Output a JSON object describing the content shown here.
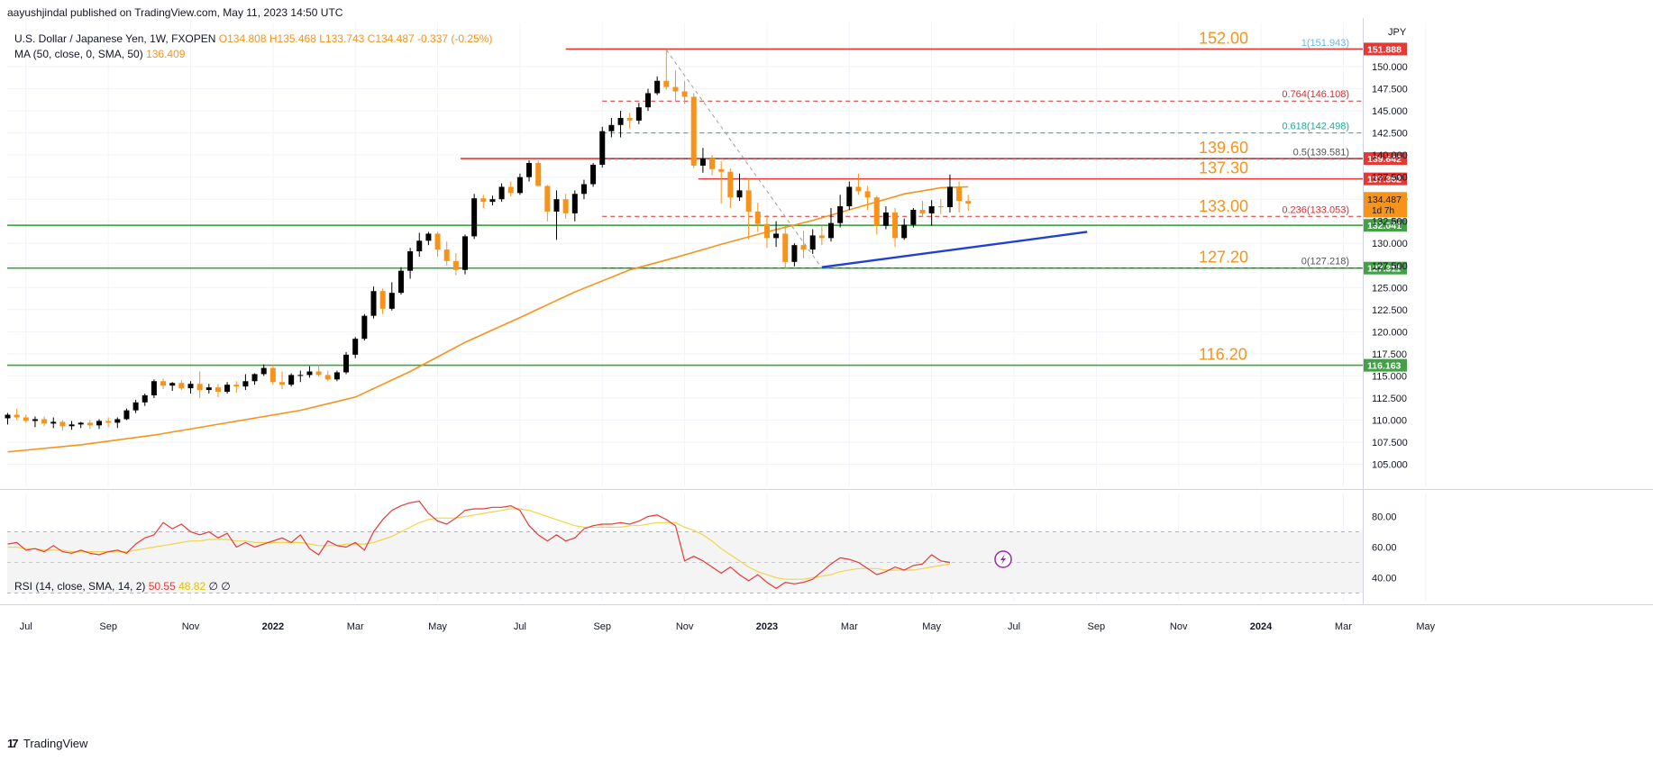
{
  "header": {
    "text": "aayushjindal published on TradingView.com, May 11, 2023 14:50 UTC"
  },
  "legend": {
    "symbol": "U.S. Dollar / Japanese Yen, 1W, FXOPEN",
    "o": "O134.808",
    "h": "H135.468",
    "l": "L133.743",
    "c": "C134.487",
    "chg": "-0.337 (-0.25%)"
  },
  "ma_legend": {
    "label": "MA (50, close, 0, SMA, 50)",
    "value": "136.409"
  },
  "rsi_legend": {
    "label": "RSI (14, close, SMA, 14, 2)",
    "rsi": "50.55",
    "sma": "48.82",
    "extra": "∅ ∅"
  },
  "brand": {
    "logo": "17",
    "name": "TradingView"
  },
  "colors": {
    "up": "#000000",
    "down": "#f7931a",
    "ma": "#f7931a",
    "rsi": "#e53935",
    "rsi_sma": "#f2d44a",
    "resistance": "#e53935",
    "support": "#43a047",
    "trend": "#1f3fd8",
    "fib_label": "#f7931a"
  },
  "chart_data": {
    "type": "candlestick",
    "title": "U.S. Dollar / Japanese Yen, 1W, FXOPEN",
    "currency": "JPY",
    "ylim": [
      102.5,
      155
    ],
    "yticks": [
      105,
      107.5,
      110,
      112.5,
      115,
      117.5,
      120,
      122.5,
      125,
      127.5,
      130,
      132.5,
      135,
      137.5,
      140,
      142.5,
      145,
      147.5,
      150
    ],
    "ytick_labels": [
      "105.000",
      "107.500",
      "110.000",
      "112.500",
      "115.000",
      "117.500",
      "120.000",
      "122.500",
      "125.000",
      "127.500",
      "130.000",
      "132.500",
      "135.000",
      "137.500",
      "140.000",
      "142.500",
      "145.000",
      "147.500",
      "150.000"
    ],
    "xticks": [
      "Jul",
      "Sep",
      "Nov",
      "2022",
      "Mar",
      "May",
      "Jul",
      "Sep",
      "Nov",
      "2023",
      "Mar",
      "May",
      "Jul",
      "Sep",
      "Nov",
      "2024",
      "Mar",
      "May"
    ],
    "xtick_weeks": [
      2,
      11,
      20,
      29,
      38,
      47,
      56,
      65,
      74,
      83,
      92,
      101,
      110,
      119,
      128,
      137,
      146,
      155
    ],
    "candles": [
      [
        110.2,
        110.8,
        109.5,
        110.6
      ],
      [
        110.6,
        111.3,
        110.0,
        110.3
      ],
      [
        110.3,
        110.6,
        109.7,
        109.9
      ],
      [
        109.9,
        110.4,
        109.2,
        110.1
      ],
      [
        110.1,
        110.4,
        109.3,
        109.6
      ],
      [
        109.6,
        110.3,
        109.1,
        109.8
      ],
      [
        109.8,
        110.0,
        108.8,
        109.3
      ],
      [
        109.3,
        109.9,
        108.9,
        109.5
      ],
      [
        109.5,
        109.8,
        109.1,
        109.7
      ],
      [
        109.7,
        110.0,
        109.0,
        109.4
      ],
      [
        109.4,
        110.1,
        109.0,
        109.9
      ],
      [
        109.9,
        110.3,
        109.2,
        109.7
      ],
      [
        109.7,
        110.3,
        109.1,
        110.1
      ],
      [
        110.1,
        111.3,
        110.0,
        111.1
      ],
      [
        111.1,
        112.3,
        110.8,
        112.0
      ],
      [
        112.0,
        113.0,
        111.6,
        112.8
      ],
      [
        112.8,
        114.6,
        112.5,
        114.4
      ],
      [
        114.4,
        114.7,
        113.5,
        113.9
      ],
      [
        113.9,
        114.3,
        113.3,
        114.2
      ],
      [
        114.2,
        114.5,
        113.4,
        113.6
      ],
      [
        113.6,
        114.4,
        113.0,
        114.1
      ],
      [
        114.1,
        115.5,
        112.5,
        113.4
      ],
      [
        113.4,
        114.1,
        113.0,
        113.7
      ],
      [
        113.7,
        114.1,
        112.6,
        113.2
      ],
      [
        113.2,
        114.3,
        113.0,
        114.0
      ],
      [
        114.0,
        114.4,
        113.1,
        113.8
      ],
      [
        113.8,
        115.2,
        113.4,
        114.4
      ],
      [
        114.4,
        115.3,
        114.0,
        115.2
      ],
      [
        115.2,
        116.3,
        115.0,
        115.9
      ],
      [
        115.9,
        116.3,
        114.0,
        114.3
      ],
      [
        114.3,
        115.5,
        113.5,
        114.0
      ],
      [
        114.0,
        115.3,
        113.8,
        115.1
      ],
      [
        115.1,
        115.6,
        114.3,
        115.1
      ],
      [
        115.1,
        116.1,
        114.8,
        115.5
      ],
      [
        115.5,
        116.3,
        114.9,
        115.1
      ],
      [
        115.1,
        115.6,
        114.4,
        114.6
      ],
      [
        114.6,
        115.6,
        114.4,
        115.4
      ],
      [
        115.4,
        117.7,
        115.2,
        117.4
      ],
      [
        117.4,
        119.4,
        117.0,
        119.2
      ],
      [
        119.2,
        122.0,
        119.0,
        121.8
      ],
      [
        121.8,
        125.1,
        121.5,
        124.6
      ],
      [
        124.6,
        124.9,
        122.0,
        122.6
      ],
      [
        122.6,
        125.6,
        122.4,
        124.4
      ],
      [
        124.4,
        127.3,
        124.2,
        126.9
      ],
      [
        126.9,
        129.5,
        126.0,
        129.1
      ],
      [
        129.1,
        131.2,
        128.5,
        130.3
      ],
      [
        130.3,
        131.3,
        129.8,
        131.1
      ],
      [
        131.1,
        131.3,
        128.5,
        129.3
      ],
      [
        129.3,
        130.2,
        127.5,
        128.0
      ],
      [
        128.0,
        128.9,
        126.4,
        127.0
      ],
      [
        127.0,
        131.0,
        126.5,
        130.8
      ],
      [
        130.8,
        135.6,
        130.5,
        135.1
      ],
      [
        135.1,
        135.5,
        134.0,
        134.7
      ],
      [
        134.7,
        135.4,
        134.3,
        135.0
      ],
      [
        135.0,
        136.8,
        134.7,
        136.4
      ],
      [
        136.4,
        137.0,
        135.3,
        135.7
      ],
      [
        135.7,
        137.9,
        135.5,
        137.5
      ],
      [
        137.5,
        139.4,
        137.0,
        139.1
      ],
      [
        139.1,
        139.4,
        136.5,
        136.5
      ],
      [
        136.5,
        136.6,
        132.5,
        133.6
      ],
      [
        133.6,
        136.0,
        130.4,
        135.0
      ],
      [
        135.0,
        135.6,
        132.8,
        133.4
      ],
      [
        133.4,
        136.0,
        132.5,
        135.6
      ],
      [
        135.6,
        137.2,
        135.0,
        136.7
      ],
      [
        136.7,
        139.1,
        136.4,
        138.9
      ],
      [
        138.9,
        143.2,
        138.6,
        142.7
      ],
      [
        142.7,
        144.2,
        142.0,
        143.4
      ],
      [
        143.4,
        145.0,
        142.0,
        144.2
      ],
      [
        144.2,
        144.8,
        143.0,
        143.9
      ],
      [
        143.9,
        145.9,
        143.5,
        145.4
      ],
      [
        145.4,
        147.5,
        145.0,
        147.0
      ],
      [
        147.0,
        148.9,
        146.8,
        148.4
      ],
      [
        148.4,
        151.9,
        147.4,
        147.7
      ],
      [
        147.7,
        149.6,
        146.0,
        147.2
      ],
      [
        147.2,
        148.4,
        145.8,
        146.6
      ],
      [
        146.6,
        147.0,
        138.5,
        138.8
      ],
      [
        138.8,
        140.8,
        138.0,
        139.6
      ],
      [
        139.6,
        140.0,
        137.7,
        138.4
      ],
      [
        138.4,
        139.3,
        134.5,
        138.1
      ],
      [
        138.1,
        138.5,
        134.0,
        135.2
      ],
      [
        135.2,
        137.9,
        134.8,
        136.0
      ],
      [
        136.0,
        137.4,
        130.5,
        133.6
      ],
      [
        133.6,
        134.6,
        131.3,
        132.2
      ],
      [
        132.2,
        133.2,
        129.5,
        130.6
      ],
      [
        130.6,
        132.5,
        129.6,
        131.1
      ],
      [
        131.1,
        132.0,
        127.2,
        127.9
      ],
      [
        127.9,
        130.0,
        127.4,
        129.8
      ],
      [
        129.8,
        131.4,
        128.3,
        129.3
      ],
      [
        129.3,
        131.6,
        128.8,
        130.9
      ],
      [
        130.9,
        132.0,
        129.8,
        130.6
      ],
      [
        130.6,
        134.0,
        130.2,
        132.3
      ],
      [
        132.3,
        135.5,
        131.8,
        134.2
      ],
      [
        134.2,
        137.0,
        133.8,
        136.4
      ],
      [
        136.4,
        137.9,
        135.5,
        135.9
      ],
      [
        135.9,
        136.5,
        133.8,
        135.2
      ],
      [
        135.2,
        135.4,
        131.0,
        132.0
      ],
      [
        132.0,
        134.2,
        131.6,
        133.5
      ],
      [
        133.5,
        134.0,
        129.6,
        130.6
      ],
      [
        130.6,
        132.8,
        130.4,
        132.1
      ],
      [
        132.1,
        134.0,
        131.8,
        133.8
      ],
      [
        133.8,
        134.8,
        133.0,
        133.4
      ],
      [
        133.4,
        134.9,
        132.0,
        134.2
      ],
      [
        134.2,
        135.0,
        133.3,
        134.1
      ],
      [
        134.1,
        137.8,
        133.5,
        136.4
      ],
      [
        136.4,
        137.0,
        133.5,
        134.8
      ],
      [
        134.8,
        135.5,
        133.7,
        134.5
      ]
    ],
    "ma50": [
      [
        0,
        106.4
      ],
      [
        8,
        107.2
      ],
      [
        16,
        108.3
      ],
      [
        24,
        109.7
      ],
      [
        32,
        111.1
      ],
      [
        38,
        112.6
      ],
      [
        44,
        115.5
      ],
      [
        50,
        118.8
      ],
      [
        56,
        121.6
      ],
      [
        62,
        124.5
      ],
      [
        68,
        127.0
      ],
      [
        73,
        128.4
      ],
      [
        78,
        129.9
      ],
      [
        83,
        131.3
      ],
      [
        88,
        132.6
      ],
      [
        93,
        134.1
      ],
      [
        98,
        135.6
      ],
      [
        102,
        136.3
      ],
      [
        105,
        136.4
      ]
    ],
    "levels": [
      {
        "price": 152.0,
        "label": "152.00",
        "kind": "resistance",
        "tag": "151.888"
      },
      {
        "price": 139.6,
        "label": "139.60",
        "kind": "resistance",
        "tag": "139.642"
      },
      {
        "price": 137.3,
        "label": "137.30",
        "kind": "resistance",
        "tag": "137.362"
      },
      {
        "price": 133.0,
        "label": "133.00",
        "kind": "support-label"
      },
      {
        "price": 132.04,
        "label": "",
        "kind": "support",
        "tag": "132.041"
      },
      {
        "price": 127.2,
        "label": "127.20",
        "kind": "support",
        "tag": "127.311"
      },
      {
        "price": 116.2,
        "label": "116.20",
        "kind": "support",
        "tag": "116.163"
      }
    ],
    "fib": [
      {
        "ratio": "1",
        "price": 151.943,
        "text": "1(151.943)",
        "color": "#64b5f6"
      },
      {
        "ratio": "0.764",
        "price": 146.108,
        "text": "0.764(146.108)",
        "color": "#d32f2f"
      },
      {
        "ratio": "0.618",
        "price": 142.498,
        "text": "0.618(142.498)",
        "color": "#26a69a"
      },
      {
        "ratio": "0.5",
        "price": 139.581,
        "text": "0.5(139.581)",
        "color": "#555555"
      },
      {
        "ratio": "0.236",
        "price": 133.053,
        "text": "0.236(133.053)",
        "color": "#d32f2f"
      },
      {
        "ratio": "0",
        "price": 127.218,
        "text": "0(127.218)",
        "color": "#555555"
      }
    ],
    "last_price": {
      "value": "134.487",
      "countdown": "1d 7h"
    },
    "trendline": [
      [
        89,
        127.3
      ],
      [
        118,
        131.3
      ]
    ],
    "rsi": {
      "ylim": [
        25,
        95
      ],
      "yticks": [
        40,
        60,
        80
      ],
      "ytick_labels": [
        "40.00",
        "60.00",
        "80.00"
      ],
      "band": [
        30,
        70
      ],
      "values": [
        62,
        63,
        58,
        59,
        57,
        61,
        57,
        56,
        58,
        56,
        55,
        57,
        58,
        56,
        62,
        66,
        68,
        76,
        72,
        75,
        70,
        68,
        70,
        66,
        69,
        60,
        63,
        60,
        62,
        64,
        66,
        63,
        68,
        59,
        55,
        64,
        61,
        60,
        63,
        58,
        70,
        78,
        84,
        87,
        89,
        90,
        82,
        77,
        75,
        79,
        84,
        85,
        85,
        86,
        86,
        87,
        84,
        74,
        68,
        64,
        68,
        64,
        66,
        72,
        74,
        75,
        75,
        76,
        75,
        77,
        80,
        81,
        78,
        74,
        51,
        54,
        51,
        47,
        43,
        47,
        42,
        38,
        42,
        37,
        33,
        37,
        36,
        37,
        39,
        44,
        49,
        53,
        52,
        50,
        46,
        42,
        44,
        47,
        45,
        48,
        49,
        55,
        51,
        50
      ],
      "sma": [
        60,
        60,
        59,
        59,
        58,
        58,
        58,
        57,
        57,
        57,
        57,
        57,
        57,
        57,
        58,
        59,
        60,
        61,
        62,
        63,
        64,
        64,
        65,
        65,
        65,
        64,
        64,
        63,
        63,
        63,
        63,
        63,
        63,
        62,
        61,
        61,
        61,
        62,
        62,
        62,
        63,
        65,
        67,
        70,
        73,
        76,
        78,
        79,
        79,
        79,
        80,
        81,
        82,
        83,
        84,
        85,
        85,
        84,
        82,
        80,
        78,
        76,
        74,
        73,
        73,
        73,
        73,
        73,
        74,
        74,
        75,
        76,
        76,
        76,
        73,
        71,
        68,
        64,
        59,
        55,
        51,
        47,
        44,
        42,
        40,
        39,
        39,
        39,
        40,
        41,
        42,
        44,
        45,
        46,
        46,
        46,
        45,
        45,
        45,
        45,
        46,
        47,
        48,
        49
      ]
    }
  }
}
